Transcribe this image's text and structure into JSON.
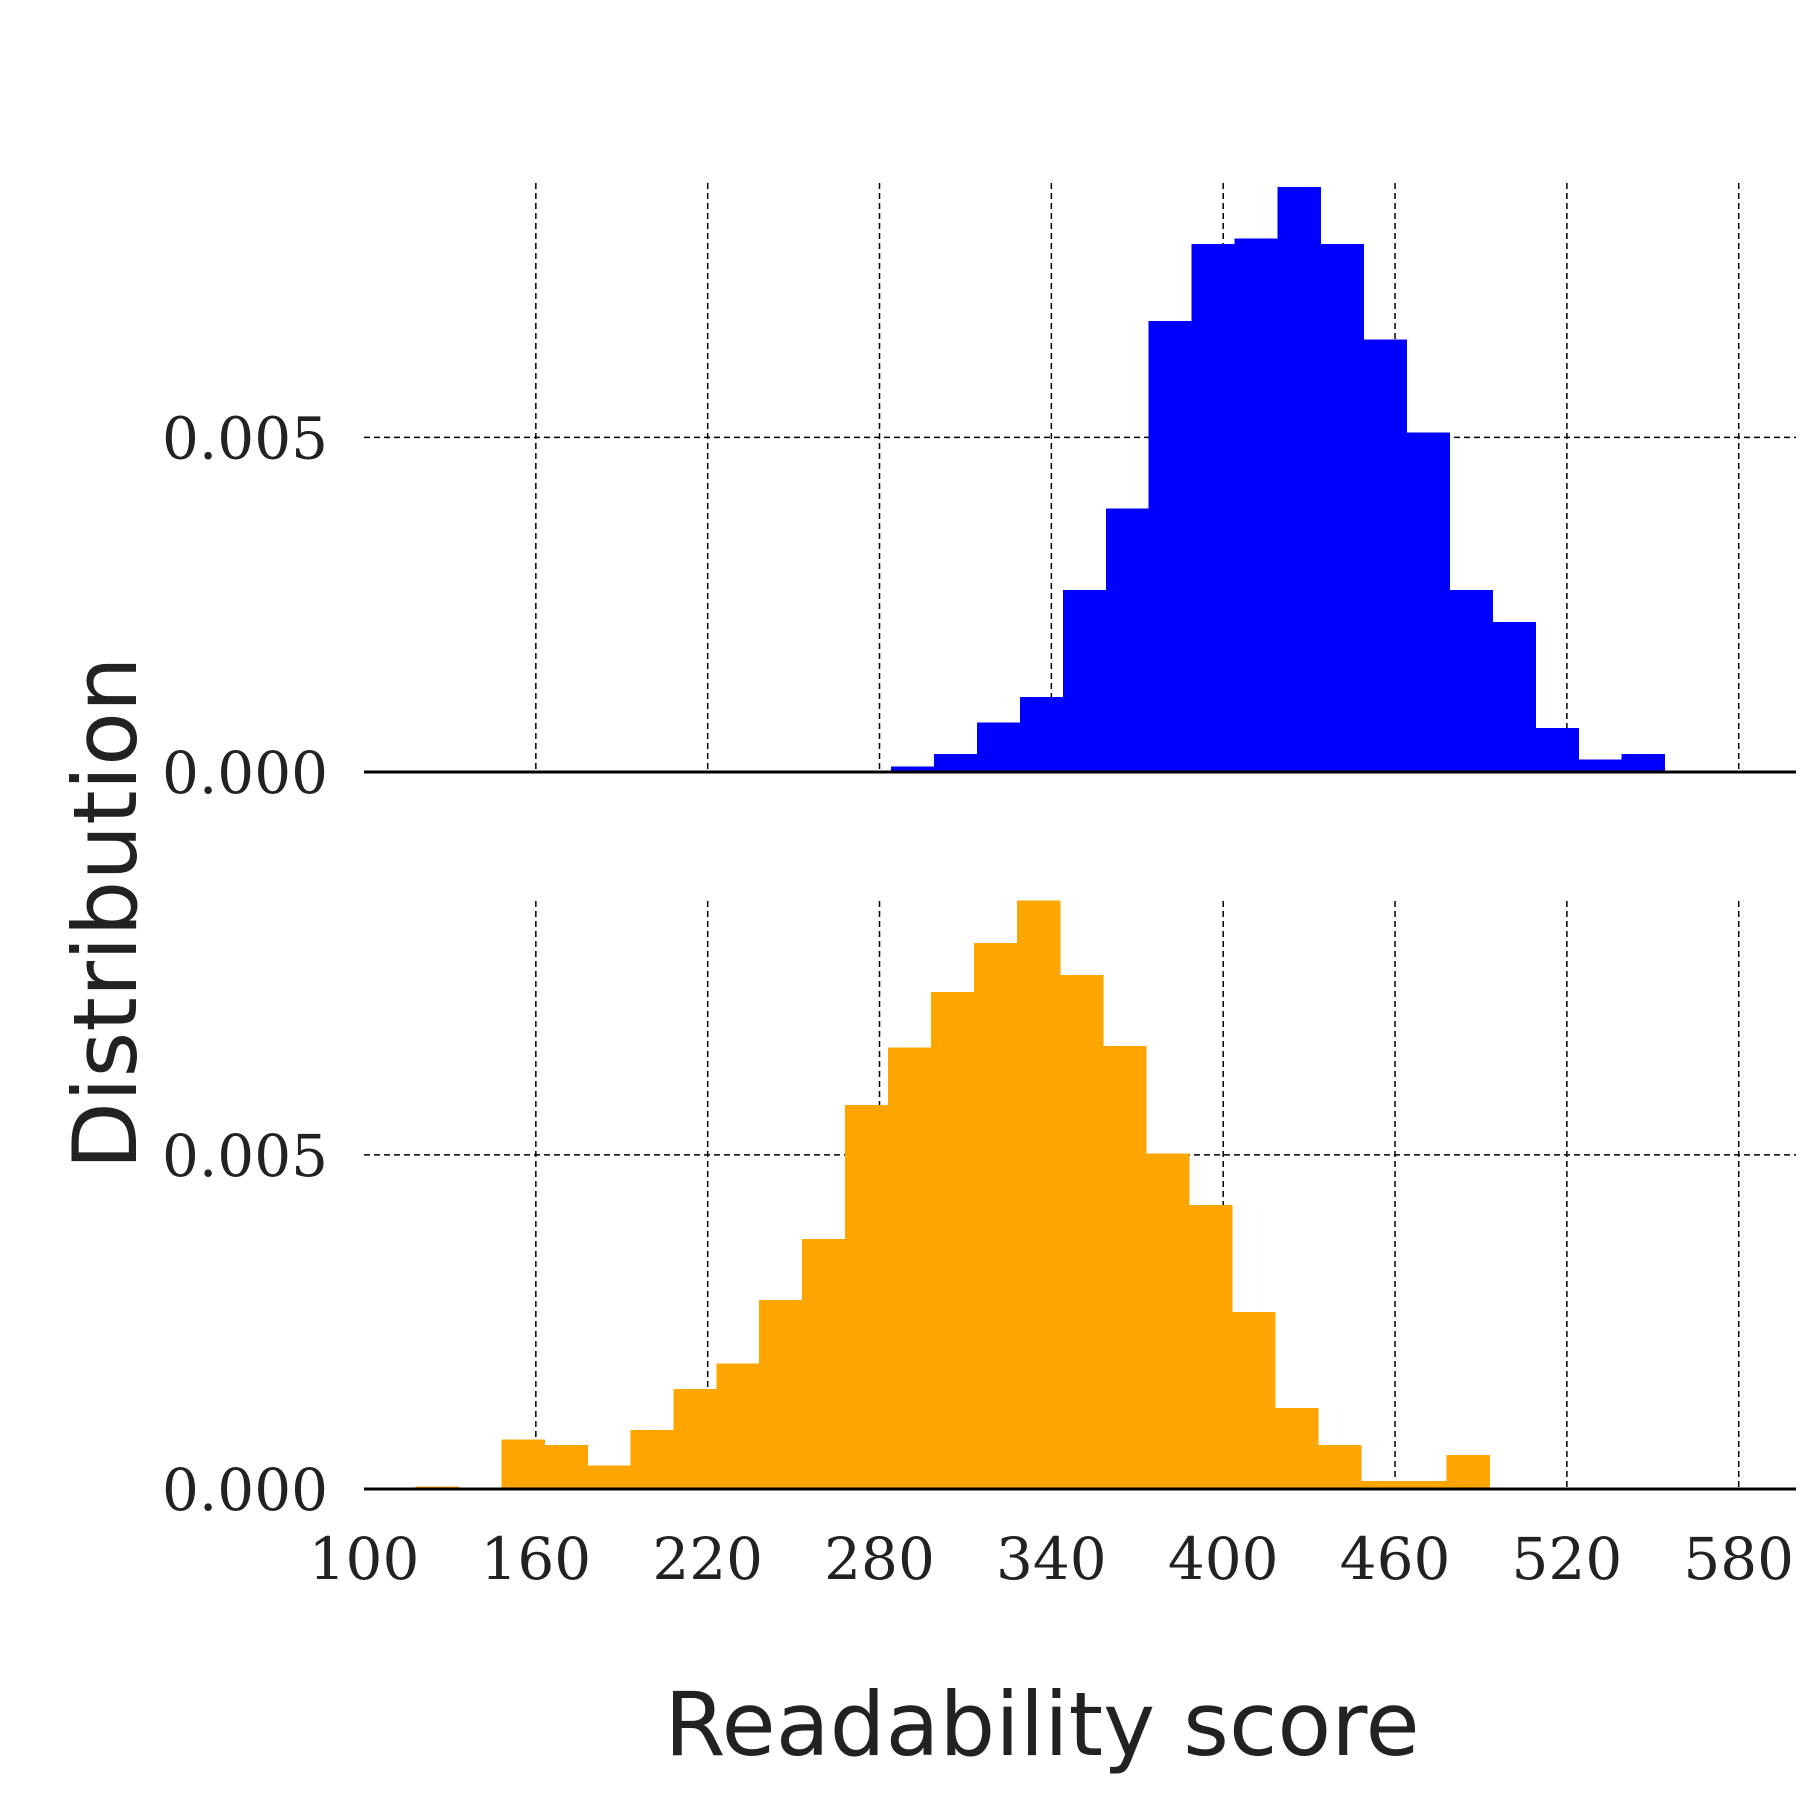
{
  "chart_data": {
    "type": "bar",
    "xlabel": "Readability score",
    "ylabel": "Distribution",
    "x_ticks": [
      "100",
      "160",
      "220",
      "280",
      "340",
      "400",
      "460",
      "520",
      "580"
    ],
    "x_tick_values": [
      100,
      160,
      220,
      280,
      340,
      400,
      460,
      520,
      580
    ],
    "xlim": [
      100,
      600
    ],
    "grid": true,
    "panels": [
      {
        "color": "#0000ff",
        "ylim": [
          0,
          0.0088
        ],
        "y_ticks": [
          "0.000",
          "0.005"
        ],
        "y_tick_values": [
          0,
          0.005
        ],
        "bins": [
          {
            "x0": 284,
            "x1": 299,
            "value": 8e-05
          },
          {
            "x0": 299,
            "x1": 314,
            "value": 0.00027
          },
          {
            "x0": 314,
            "x1": 329,
            "value": 0.00074
          },
          {
            "x0": 329,
            "x1": 344,
            "value": 0.00112
          },
          {
            "x0": 344,
            "x1": 359,
            "value": 0.00272
          },
          {
            "x0": 359,
            "x1": 374,
            "value": 0.00394
          },
          {
            "x0": 374,
            "x1": 389,
            "value": 0.00674
          },
          {
            "x0": 389,
            "x1": 404,
            "value": 0.00789
          },
          {
            "x0": 404,
            "x1": 419,
            "value": 0.00797
          },
          {
            "x0": 419,
            "x1": 434,
            "value": 0.00874
          },
          {
            "x0": 434,
            "x1": 449,
            "value": 0.00789
          },
          {
            "x0": 449,
            "x1": 464,
            "value": 0.00646
          },
          {
            "x0": 464,
            "x1": 479,
            "value": 0.00507
          },
          {
            "x0": 479,
            "x1": 494,
            "value": 0.00272
          },
          {
            "x0": 494,
            "x1": 509,
            "value": 0.00224
          },
          {
            "x0": 509,
            "x1": 524,
            "value": 0.00066
          },
          {
            "x0": 524,
            "x1": 539,
            "value": 0.00019
          },
          {
            "x0": 539,
            "x1": 554,
            "value": 0.00027
          }
        ]
      },
      {
        "color": "#ffa500",
        "ylim": [
          0,
          0.0088
        ],
        "y_ticks": [
          "0.000",
          "0.005"
        ],
        "y_tick_values": [
          0,
          0.005
        ],
        "bins": [
          {
            "x0": 118,
            "x1": 133,
            "value": 4e-05
          },
          {
            "x0": 133,
            "x1": 148,
            "value": 0.0
          },
          {
            "x0": 148,
            "x1": 163,
            "value": 0.00074
          },
          {
            "x0": 163,
            "x1": 178,
            "value": 0.00066
          },
          {
            "x0": 178,
            "x1": 193,
            "value": 0.00035
          },
          {
            "x0": 193,
            "x1": 208,
            "value": 0.00088
          },
          {
            "x0": 208,
            "x1": 223,
            "value": 0.0015
          },
          {
            "x0": 223,
            "x1": 238,
            "value": 0.00188
          },
          {
            "x0": 238,
            "x1": 253,
            "value": 0.00283
          },
          {
            "x0": 253,
            "x1": 268,
            "value": 0.00374
          },
          {
            "x0": 268,
            "x1": 283,
            "value": 0.00575
          },
          {
            "x0": 283,
            "x1": 298,
            "value": 0.00661
          },
          {
            "x0": 298,
            "x1": 313,
            "value": 0.00744
          },
          {
            "x0": 313,
            "x1": 328,
            "value": 0.00817
          },
          {
            "x0": 328,
            "x1": 343,
            "value": 0.00881
          },
          {
            "x0": 343,
            "x1": 358,
            "value": 0.00769
          },
          {
            "x0": 358,
            "x1": 373,
            "value": 0.00663
          },
          {
            "x0": 373,
            "x1": 388,
            "value": 0.00502
          },
          {
            "x0": 388,
            "x1": 403,
            "value": 0.00425
          },
          {
            "x0": 403,
            "x1": 418,
            "value": 0.00265
          },
          {
            "x0": 418,
            "x1": 433,
            "value": 0.00121
          },
          {
            "x0": 433,
            "x1": 448,
            "value": 0.00066
          },
          {
            "x0": 448,
            "x1": 463,
            "value": 0.00012
          },
          {
            "x0": 463,
            "x1": 478,
            "value": 0.00012
          },
          {
            "x0": 478,
            "x1": 493,
            "value": 0.00051
          }
        ]
      }
    ]
  }
}
